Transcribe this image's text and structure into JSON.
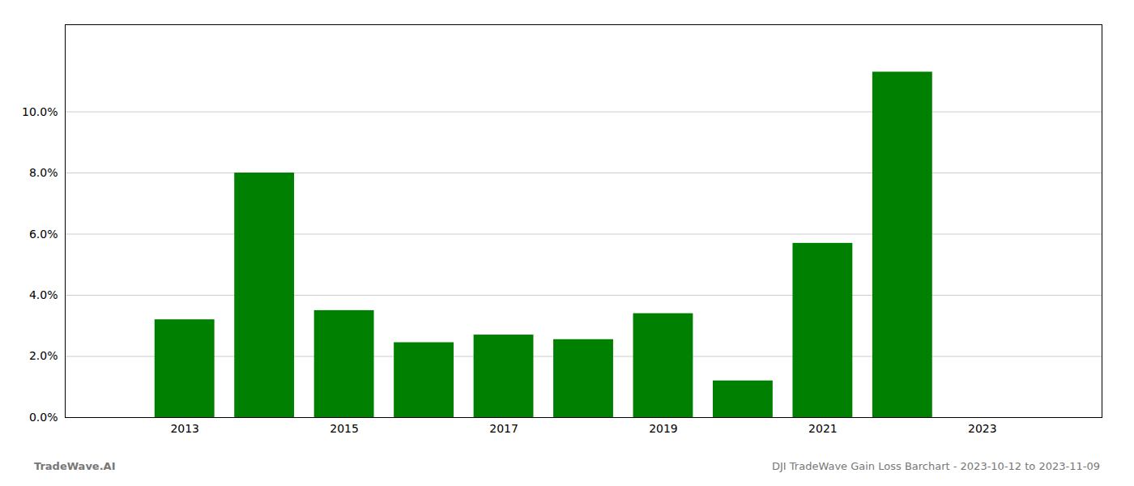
{
  "chart_data": {
    "type": "bar",
    "x": [
      2013,
      2014,
      2015,
      2016,
      2017,
      2018,
      2019,
      2020,
      2021,
      2022,
      2023
    ],
    "values": [
      0.032,
      0.08,
      0.035,
      0.0245,
      0.027,
      0.0255,
      0.034,
      0.012,
      0.057,
      0.113,
      0.0
    ],
    "color": "#008000",
    "xlim": [
      2011.5,
      2024.5
    ],
    "xticks": [
      2013,
      2015,
      2017,
      2019,
      2021,
      2023
    ],
    "ylim": [
      0.0,
      0.1285
    ],
    "yticks": [
      {
        "value": 0.0,
        "label": "0.0%"
      },
      {
        "value": 0.02,
        "label": "2.0%"
      },
      {
        "value": 0.04,
        "label": "4.0%"
      },
      {
        "value": 0.06,
        "label": "6.0%"
      },
      {
        "value": 0.08,
        "label": "8.0%"
      },
      {
        "value": 0.1,
        "label": "10.0%"
      }
    ],
    "grid": true,
    "annotations": [
      "TradeWave.AI",
      "DJI TradeWave Gain Loss Barchart - 2023-10-12 to 2023-11-09"
    ]
  }
}
